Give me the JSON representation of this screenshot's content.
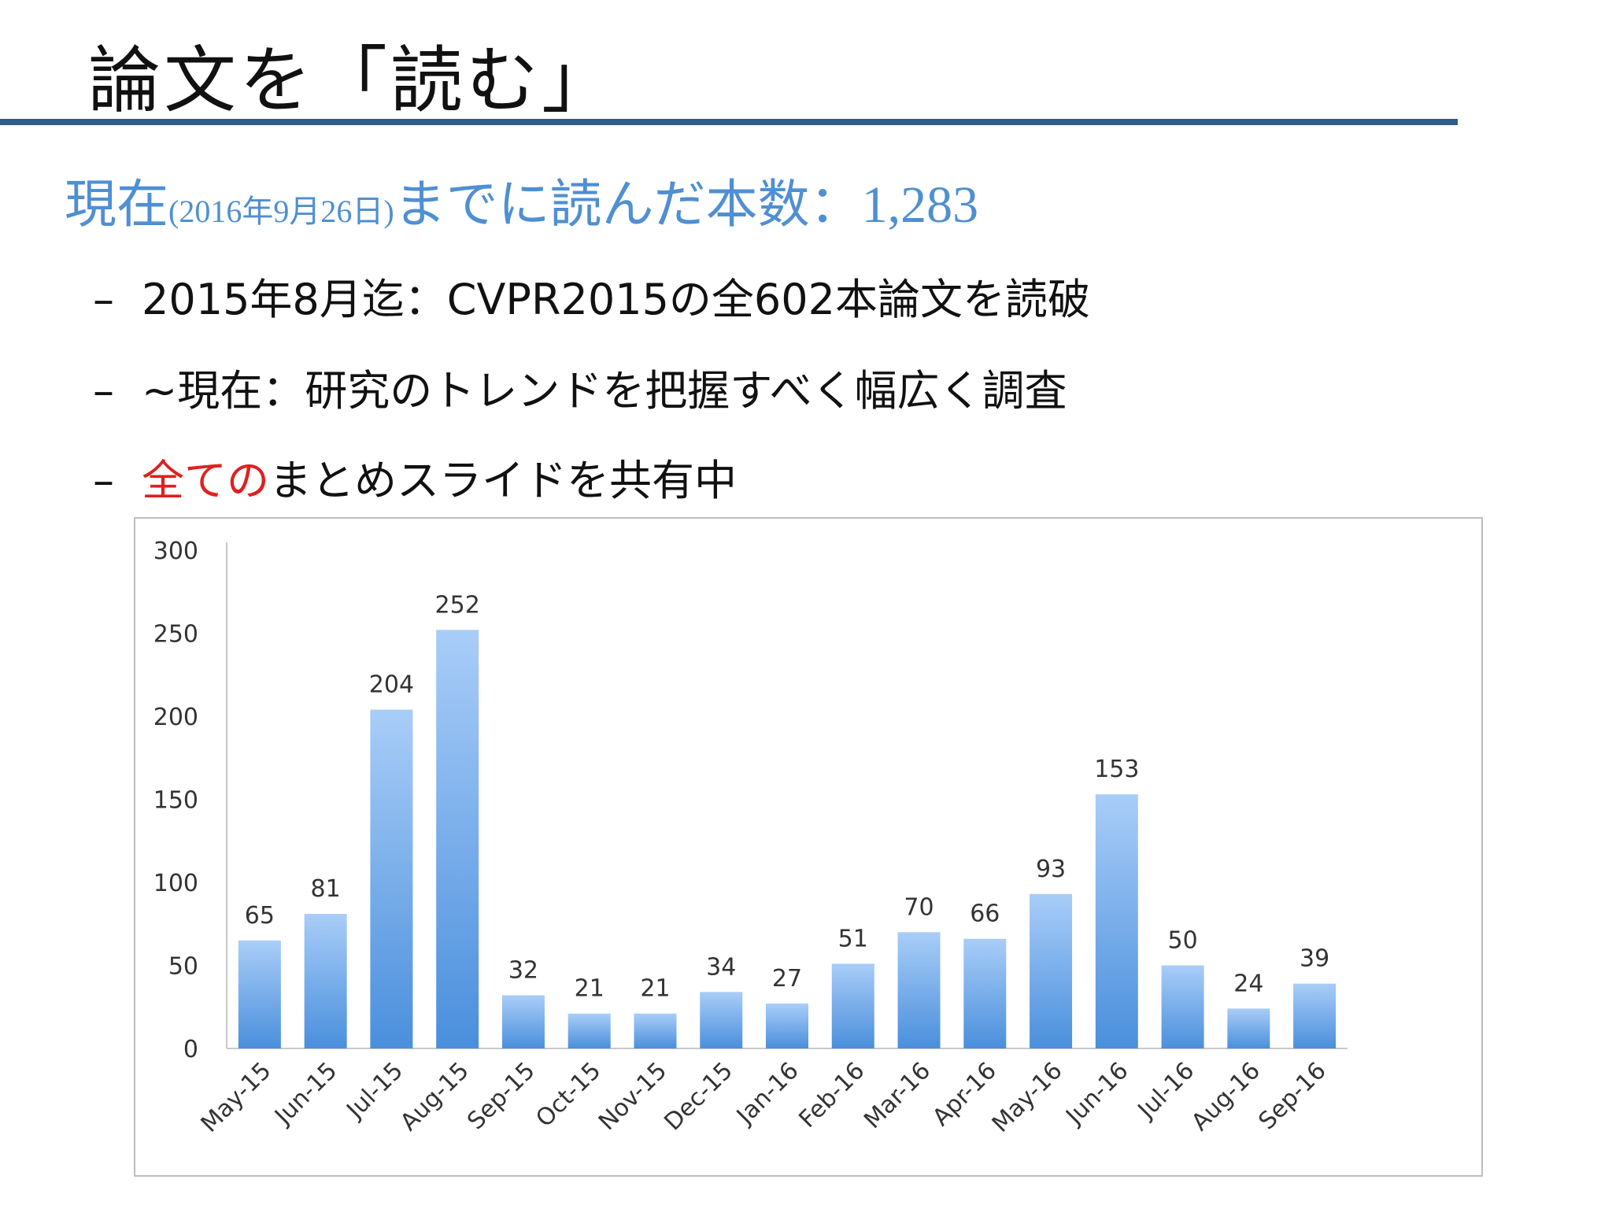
{
  "slide": {
    "title": "論文を「読む」",
    "subtitle": {
      "prefix": "現在",
      "date": "(2016年9月26日)",
      "middle": "までに読んだ本数：",
      "total": "1,283"
    },
    "bullets": [
      {
        "dash": "–",
        "text": "2015年8月迄：CVPR2015の全602本論文を読破"
      },
      {
        "dash": "–",
        "text": "~現在：研究のトレンドを把握すべく幅広く調査"
      },
      {
        "dash": "–",
        "highlight": "全ての",
        "text": "まとめスライドを共有中"
      }
    ],
    "colors": {
      "accent_blue": "#4f8fd3",
      "rule": "#2f5b8c",
      "highlight_red": "#e02020"
    }
  },
  "chart_data": {
    "type": "bar",
    "categories": [
      "May-15",
      "Jun-15",
      "Jul-15",
      "Aug-15",
      "Sep-15",
      "Oct-15",
      "Nov-15",
      "Dec-15",
      "Jan-16",
      "Feb-16",
      "Mar-16",
      "Apr-16",
      "May-16",
      "Jun-16",
      "Jul-16",
      "Aug-16",
      "Sep-16"
    ],
    "values": [
      65,
      81,
      204,
      252,
      32,
      21,
      21,
      34,
      27,
      51,
      70,
      66,
      93,
      153,
      50,
      24,
      39
    ],
    "yticks": [
      "0",
      "50",
      "100",
      "150",
      "200",
      "250",
      "300"
    ],
    "ylim": [
      0,
      300
    ],
    "grid": false,
    "legend": "none",
    "bar_color_top": "#a9cdf8",
    "bar_color_bottom": "#4a8fdc"
  }
}
